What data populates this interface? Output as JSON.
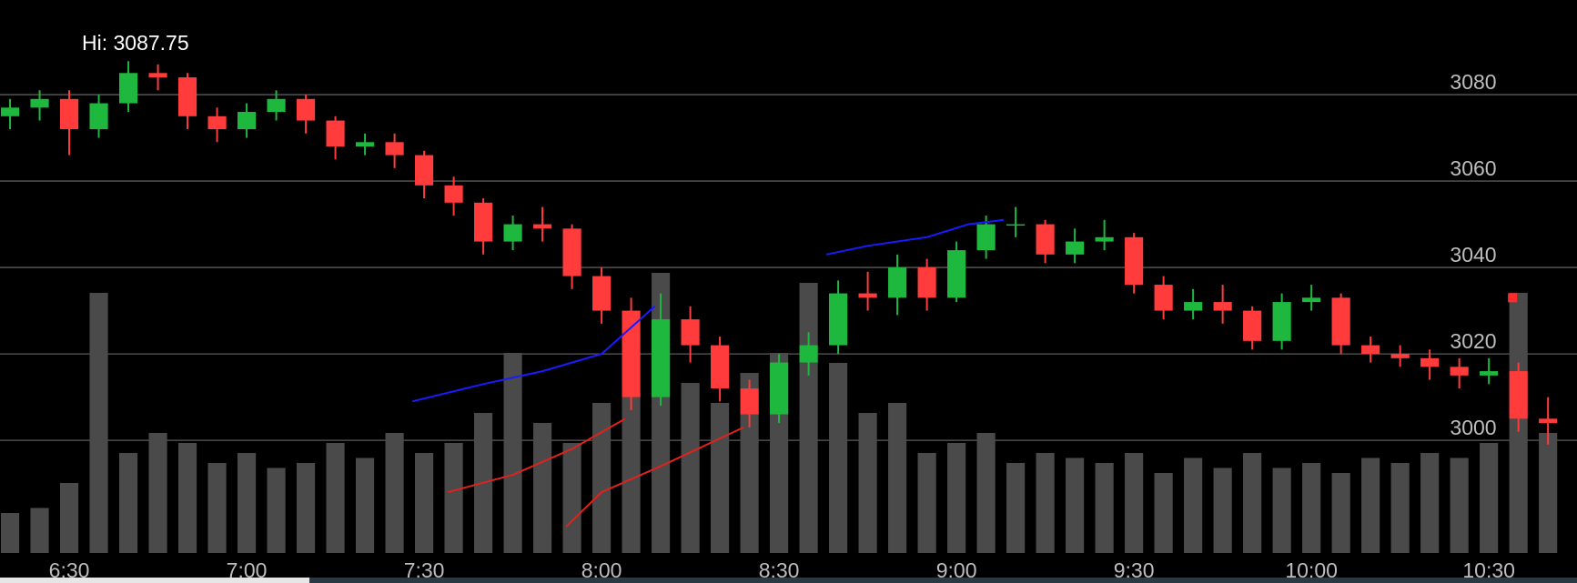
{
  "chart_data": {
    "type": "candlestick",
    "hi_label": "Hi: 3087.75",
    "x": [
      380,
      385,
      390,
      395,
      400,
      405,
      410,
      415,
      420,
      425,
      430,
      435,
      440,
      445,
      450,
      455,
      460,
      465,
      470,
      475,
      480,
      485,
      490,
      495,
      500,
      505,
      510,
      515,
      520,
      525,
      530,
      535,
      540,
      545,
      550,
      555,
      560,
      565,
      570,
      575,
      580,
      585,
      590,
      595,
      600,
      605,
      610,
      615,
      620,
      625,
      630,
      635,
      640
    ],
    "open": [
      3075,
      3077,
      3079,
      3072,
      3078,
      3085,
      3084,
      3075,
      3072,
      3076,
      3079,
      3074,
      3068,
      3069,
      3066,
      3059,
      3055,
      3046,
      3050,
      3049,
      3038,
      3030,
      3010,
      3028,
      3022,
      3012,
      3006,
      3018,
      3022,
      3034,
      3033,
      3040,
      3033,
      3044,
      3050,
      3050,
      3043,
      3046,
      3047,
      3036,
      3030,
      3032,
      3030,
      3023,
      3032,
      3033,
      3022,
      3020,
      3019,
      3017,
      3015,
      3016,
      3005
    ],
    "high": [
      3079,
      3081,
      3081,
      3080,
      3087.75,
      3087,
      3085,
      3077,
      3078,
      3081,
      3080,
      3075,
      3071,
      3071,
      3067,
      3061,
      3056,
      3052,
      3054,
      3050,
      3040,
      3033,
      3034,
      3031,
      3024,
      3014,
      3020,
      3025,
      3037,
      3039,
      3043,
      3042,
      3046,
      3052,
      3054,
      3051,
      3049,
      3051,
      3048,
      3038,
      3035,
      3036,
      3031,
      3034,
      3036,
      3034,
      3024,
      3022,
      3021,
      3019,
      3019,
      3018,
      3010
    ],
    "low": [
      3072,
      3074,
      3066,
      3070,
      3076,
      3081,
      3072,
      3069,
      3070,
      3074,
      3071,
      3065,
      3066,
      3063,
      3056,
      3052,
      3043,
      3044,
      3046,
      3035,
      3027,
      3007,
      3008,
      3018,
      3009,
      3003,
      3004,
      3015,
      3020,
      3030,
      3029,
      3030,
      3032,
      3042,
      3047,
      3041,
      3041,
      3044,
      3034,
      3028,
      3028,
      3027,
      3021,
      3021,
      3030,
      3020,
      3018,
      3017,
      3014,
      3012,
      3013,
      3002,
      2999
    ],
    "close": [
      3077,
      3079,
      3072,
      3078,
      3085,
      3084,
      3075,
      3072,
      3076,
      3079,
      3074,
      3068,
      3069,
      3066,
      3059,
      3055,
      3046,
      3050,
      3049,
      3038,
      3030,
      3010,
      3028,
      3022,
      3012,
      3006,
      3018,
      3022,
      3034,
      3033,
      3040,
      3033,
      3044,
      3050,
      3050,
      3043,
      3046,
      3047,
      3036,
      3030,
      3032,
      3030,
      3023,
      3032,
      3033,
      3022,
      3020,
      3019,
      3017,
      3015,
      3016,
      3005,
      3004
    ],
    "volume": [
      40,
      45,
      70,
      260,
      100,
      120,
      110,
      90,
      100,
      85,
      90,
      110,
      95,
      120,
      100,
      110,
      140,
      200,
      130,
      110,
      150,
      160,
      280,
      170,
      150,
      180,
      200,
      270,
      190,
      140,
      150,
      100,
      110,
      120,
      90,
      100,
      95,
      90,
      100,
      80,
      95,
      85,
      100,
      85,
      90,
      80,
      95,
      90,
      100,
      95,
      110,
      260,
      120
    ],
    "up_color": "#1fb83f",
    "down_color": "#ff3b3b",
    "volume_color": "#4a4a4a",
    "lines": [
      {
        "color": "#1a1aff",
        "x": [
          448,
          460,
          470,
          480,
          489
        ],
        "values": [
          3009,
          3013,
          3016,
          3020,
          3031
        ]
      },
      {
        "color": "#1a1aff",
        "x": [
          518,
          525,
          535,
          542,
          548
        ],
        "values": [
          3043,
          3045,
          3047,
          3050,
          3051
        ]
      },
      {
        "color": "#e0221e",
        "x": [
          454,
          465,
          475,
          484
        ],
        "values": [
          2988,
          2992,
          2998,
          3005
        ]
      },
      {
        "color": "#e0221e",
        "x": [
          474,
          480,
          490,
          504
        ],
        "values": [
          2980,
          2988,
          2994,
          3003
        ]
      }
    ],
    "marker": {
      "x": 634,
      "value": 3033,
      "color": "#ff2b2b"
    },
    "xlim": [
      378.3,
      644.9
    ],
    "ylim": [
      2973.5,
      3101.9
    ],
    "vlim": [
      0,
      300
    ],
    "xticks": [
      {
        "value": 390,
        "label": "6:30"
      },
      {
        "value": 420,
        "label": "7:00"
      },
      {
        "value": 450,
        "label": "7:30"
      },
      {
        "value": 480,
        "label": "8:00"
      },
      {
        "value": 510,
        "label": "8:30"
      },
      {
        "value": 540,
        "label": "9:00"
      },
      {
        "value": 570,
        "label": "9:30"
      },
      {
        "value": 600,
        "label": "10:00"
      },
      {
        "value": 630,
        "label": "10:30"
      }
    ],
    "yticks": [
      3000,
      3020,
      3040,
      3060,
      3080
    ],
    "grid": true
  }
}
